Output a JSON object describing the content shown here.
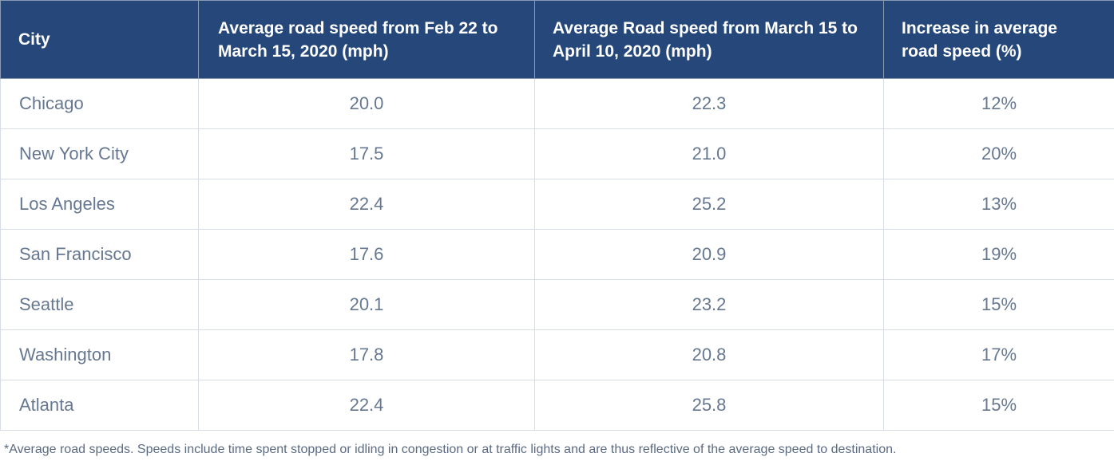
{
  "chart_data": {
    "type": "table",
    "columns": [
      "City",
      "Average road speed from Feb 22 to March 15, 2020 (mph)",
      "Average Road speed from March 15 to April 10, 2020 (mph)",
      "Increase in average road speed (%)"
    ],
    "rows": [
      [
        "Chicago",
        "20.0",
        "22.3",
        "12%"
      ],
      [
        "New York City",
        "17.5",
        "21.0",
        "20%"
      ],
      [
        "Los Angeles",
        "22.4",
        "25.2",
        "13%"
      ],
      [
        "San Francisco",
        "17.6",
        "20.9",
        "19%"
      ],
      [
        "Seattle",
        "20.1",
        "23.2",
        "15%"
      ],
      [
        "Washington",
        "17.8",
        "20.8",
        "17%"
      ],
      [
        "Atlanta",
        "22.4",
        "25.8",
        "15%"
      ]
    ],
    "footnote": "*Average road speeds. Speeds include time spent stopped or idling in congestion or at traffic lights and are thus reflective of the average speed to destination.",
    "colors": {
      "header_bg": "#25477a",
      "header_text": "#ffffff",
      "cell_text": "#667891",
      "border": "#d8dde5"
    }
  }
}
